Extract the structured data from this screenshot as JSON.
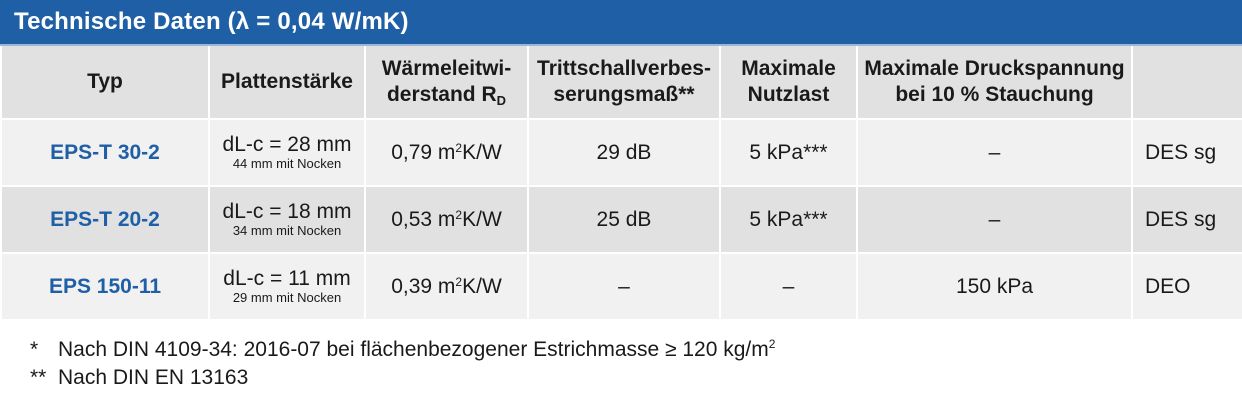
{
  "title": "Technische Daten (λ = 0,04 W/mK)",
  "colors": {
    "brand_blue": "#1f5fa6",
    "header_gray": "#e1e1e1",
    "row_light": "#f1f1f1"
  },
  "table": {
    "headers": {
      "typ": "Typ",
      "plattenstaerke": "Plattenstärke",
      "waerme_line1": "Wärmeleitwi-",
      "waerme_line2": "derstand R",
      "waerme_sub": "D",
      "tritt_line1": "Trittschallverbes-",
      "tritt_line2": "serungsmaß**",
      "nutz_line1": "Maximale",
      "nutz_line2": "Nutzlast",
      "druck_line1": "Maximale Druckspannung",
      "druck_line2": "bei 10 % Stauchung",
      "last": ""
    },
    "rows": [
      {
        "typ": "EPS-T 30-2",
        "thickness": "dL-c = 28 mm",
        "thickness_sub": "44 mm mit Nocken",
        "resistance": "0,79 m",
        "resistance_sup": "2",
        "resistance_unit": "K/W",
        "tritt": "29 dB",
        "nutzlast": "5 kPa***",
        "druck": "–",
        "code": "DES sg"
      },
      {
        "typ": "EPS-T 20-2",
        "thickness": "dL-c = 18 mm",
        "thickness_sub": "34 mm mit Nocken",
        "resistance": "0,53 m",
        "resistance_sup": "2",
        "resistance_unit": "K/W",
        "tritt": "25 dB",
        "nutzlast": "5 kPa***",
        "druck": "–",
        "code": "DES sg"
      },
      {
        "typ": "EPS 150-11",
        "thickness": "dL-c = 11 mm",
        "thickness_sub": "29 mm mit Nocken",
        "resistance": "0,39 m",
        "resistance_sup": "2",
        "resistance_unit": "K/W",
        "tritt": "–",
        "nutzlast": "–",
        "druck": "150 kPa",
        "code": "DEO"
      }
    ]
  },
  "footnotes": [
    {
      "mark": "*",
      "text": "Nach DIN 4109-34: 2016-07 bei flächenbezogener Estrichmasse ≥ 120 kg/m",
      "sup": "2"
    },
    {
      "mark": "**",
      "text": "Nach DIN EN 13163",
      "sup": ""
    }
  ]
}
